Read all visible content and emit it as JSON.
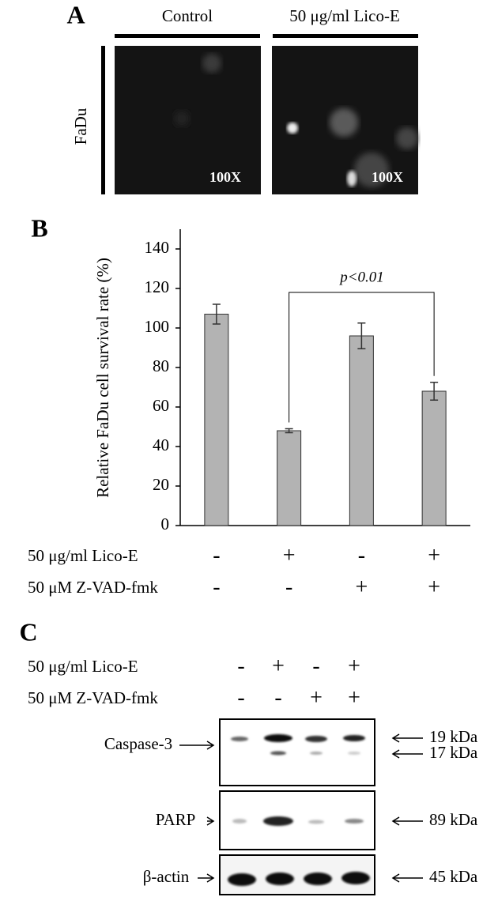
{
  "panel_a": {
    "label": "A",
    "columns": [
      "Control",
      "50 μg/ml Lico-E"
    ],
    "row": "FaDu",
    "magnification": [
      "100X",
      "100X"
    ]
  },
  "chart_data": {
    "type": "bar",
    "panel_label": "B",
    "ylabel": "Relative FaDu cell survival rate (%)",
    "values": [
      107,
      48,
      96,
      68
    ],
    "errors": [
      5,
      1,
      6.5,
      4.5
    ],
    "color": "#b3b3b3",
    "ylim": [
      0,
      150
    ],
    "yticks": [
      0,
      20,
      40,
      60,
      80,
      100,
      120,
      140
    ],
    "annotation": "p<0.01",
    "treatments": [
      {
        "label": "50 μg/ml Lico-E",
        "signs": [
          "-",
          "+",
          "-",
          "+"
        ]
      },
      {
        "label": "50 μM Z-VAD-fmk",
        "signs": [
          "-",
          "-",
          "+",
          "+"
        ]
      }
    ]
  },
  "panel_c": {
    "label": "C",
    "treatments": [
      {
        "label": "50 μg/ml Lico-E",
        "signs": [
          "-",
          "+",
          "-",
          "+"
        ]
      },
      {
        "label": "50 μM Z-VAD-fmk",
        "signs": [
          "-",
          "-",
          "+",
          "+"
        ]
      }
    ],
    "blots": [
      {
        "name": "Caspase-3",
        "sizes": [
          "19 kDa",
          "17 kDa"
        ]
      },
      {
        "name": "PARP",
        "sizes": [
          "89 kDa"
        ]
      },
      {
        "name": "β-actin",
        "sizes": [
          "45 kDa"
        ]
      }
    ]
  }
}
